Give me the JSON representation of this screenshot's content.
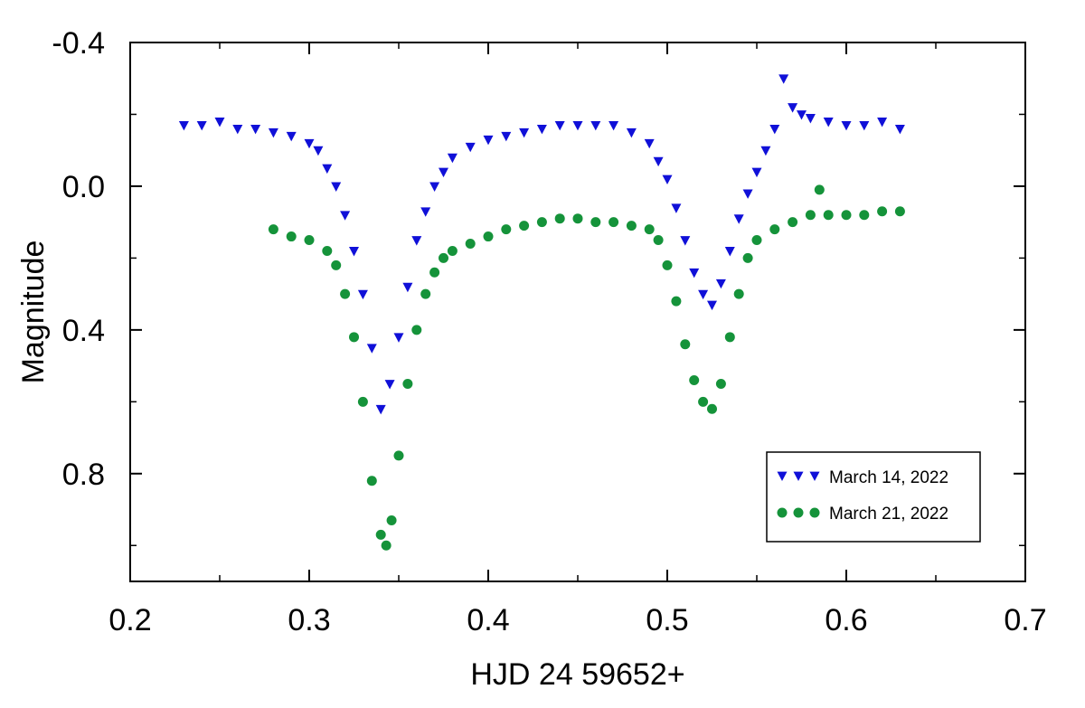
{
  "chart_data": {
    "type": "scatter",
    "xlabel": "HJD 24 59652+",
    "ylabel": "Magnitude",
    "xlim": [
      0.2,
      0.7
    ],
    "ylim": [
      -0.4,
      1.1
    ],
    "y_inverted": true,
    "x_ticks": [
      0.2,
      0.3,
      0.4,
      0.5,
      0.6,
      0.7
    ],
    "x_tick_labels": [
      "0.2",
      "0.3",
      "0.4",
      "0.5",
      "0.6",
      "0.7"
    ],
    "y_ticks": [
      -0.4,
      0.0,
      0.4,
      0.8
    ],
    "y_tick_labels": [
      "-0.4",
      "0.0",
      "0.4",
      "0.8"
    ],
    "grid": false,
    "legend_position": "bottom-right",
    "series": [
      {
        "name": "March 14, 2022",
        "marker": "triangle-down",
        "color": "#1010d8",
        "x": [
          0.23,
          0.24,
          0.25,
          0.26,
          0.27,
          0.28,
          0.29,
          0.3,
          0.305,
          0.31,
          0.315,
          0.32,
          0.325,
          0.33,
          0.335,
          0.34,
          0.345,
          0.35,
          0.355,
          0.36,
          0.365,
          0.37,
          0.375,
          0.38,
          0.39,
          0.4,
          0.41,
          0.42,
          0.43,
          0.44,
          0.45,
          0.46,
          0.47,
          0.48,
          0.49,
          0.495,
          0.5,
          0.505,
          0.51,
          0.515,
          0.52,
          0.525,
          0.53,
          0.535,
          0.54,
          0.545,
          0.55,
          0.555,
          0.56,
          0.565,
          0.57,
          0.575,
          0.58,
          0.59,
          0.6,
          0.61,
          0.62,
          0.63
        ],
        "y": [
          -0.17,
          -0.17,
          -0.18,
          -0.16,
          -0.16,
          -0.15,
          -0.14,
          -0.12,
          -0.1,
          -0.05,
          0.0,
          0.08,
          0.18,
          0.3,
          0.45,
          0.62,
          0.55,
          0.42,
          0.28,
          0.15,
          0.07,
          0.0,
          -0.04,
          -0.08,
          -0.11,
          -0.13,
          -0.14,
          -0.15,
          -0.16,
          -0.17,
          -0.17,
          -0.17,
          -0.17,
          -0.15,
          -0.12,
          -0.07,
          -0.02,
          0.06,
          0.15,
          0.24,
          0.3,
          0.33,
          0.27,
          0.18,
          0.09,
          0.02,
          -0.04,
          -0.1,
          -0.16,
          -0.3,
          -0.22,
          -0.2,
          -0.19,
          -0.18,
          -0.17,
          -0.17,
          -0.18,
          -0.16
        ]
      },
      {
        "name": "March 21, 2022",
        "marker": "circle",
        "color": "#15933a",
        "x": [
          0.28,
          0.29,
          0.3,
          0.31,
          0.315,
          0.32,
          0.325,
          0.33,
          0.335,
          0.34,
          0.343,
          0.346,
          0.35,
          0.355,
          0.36,
          0.365,
          0.37,
          0.375,
          0.38,
          0.39,
          0.4,
          0.41,
          0.42,
          0.43,
          0.44,
          0.45,
          0.46,
          0.47,
          0.48,
          0.49,
          0.495,
          0.5,
          0.505,
          0.51,
          0.515,
          0.52,
          0.525,
          0.53,
          0.535,
          0.54,
          0.545,
          0.55,
          0.56,
          0.57,
          0.58,
          0.585,
          0.59,
          0.6,
          0.61,
          0.62,
          0.63
        ],
        "y": [
          0.12,
          0.14,
          0.15,
          0.18,
          0.22,
          0.3,
          0.42,
          0.6,
          0.82,
          0.97,
          1.0,
          0.93,
          0.75,
          0.55,
          0.4,
          0.3,
          0.24,
          0.2,
          0.18,
          0.16,
          0.14,
          0.12,
          0.11,
          0.1,
          0.09,
          0.09,
          0.1,
          0.1,
          0.11,
          0.12,
          0.15,
          0.22,
          0.32,
          0.44,
          0.54,
          0.6,
          0.62,
          0.55,
          0.42,
          0.3,
          0.2,
          0.15,
          0.12,
          0.1,
          0.08,
          0.01,
          0.08,
          0.08,
          0.08,
          0.07,
          0.07
        ]
      }
    ]
  }
}
